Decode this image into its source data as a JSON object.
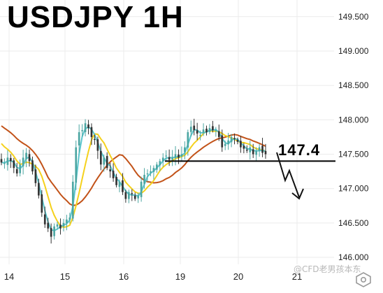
{
  "chart_data": {
    "type": "candlestick",
    "title": "USDJPY 1H",
    "symbol": "USDJPY",
    "timeframe": "1H",
    "y_ticks": [
      "149.500",
      "149.000",
      "148.500",
      "148.000",
      "147.500",
      "147.000",
      "146.500",
      "146.000"
    ],
    "ylim": [
      145.97,
      149.62
    ],
    "x_ticks": [
      "14",
      "15",
      "16",
      "19",
      "20",
      "21"
    ],
    "grid": true,
    "annotations": {
      "level_value": 147.4,
      "level_label": "147.4",
      "projection_arrow": "down"
    },
    "series": [
      {
        "values": [
          147.38,
          147.37,
          147.45,
          147.4,
          147.3,
          147.22,
          147.35,
          147.45,
          147.52,
          147.4,
          147.25,
          147.08,
          146.9,
          146.65,
          146.48,
          146.42,
          146.3,
          146.45,
          146.48,
          146.42,
          146.5,
          146.55,
          146.58,
          147.1,
          147.6,
          147.82,
          147.85,
          147.95,
          147.88,
          147.75,
          147.72,
          147.55,
          147.35,
          147.45,
          147.3,
          147.25,
          147.15,
          147.05,
          147.1,
          146.95,
          146.85,
          146.95,
          146.92,
          146.85,
          146.9,
          147.1,
          147.2,
          147.22,
          147.25,
          147.3,
          147.35,
          147.4,
          147.45,
          147.48,
          147.42,
          147.45,
          147.5,
          147.45,
          147.5,
          147.6,
          147.82,
          147.9,
          147.85,
          147.8,
          147.78,
          147.86,
          147.82,
          147.88,
          147.85,
          147.85,
          147.75,
          147.6,
          147.65,
          147.7,
          147.75,
          147.72,
          147.68,
          147.6,
          147.58,
          147.55,
          147.6,
          147.5,
          147.55,
          147.6,
          147.52,
          147.5
        ]
      }
    ]
  },
  "watermark": "@CFD老男孩本东",
  "icons": {
    "watermark_logo": "tradingview-settings-icon"
  },
  "colors": {
    "candle_up": "#4ca6a2",
    "candle_down": "#333333",
    "ma_fast": "#5bc6cd",
    "ma_mid": "#f5d11c",
    "ma_slow": "#c25218",
    "level_line": "#000000",
    "grid": "#ebebeb"
  }
}
